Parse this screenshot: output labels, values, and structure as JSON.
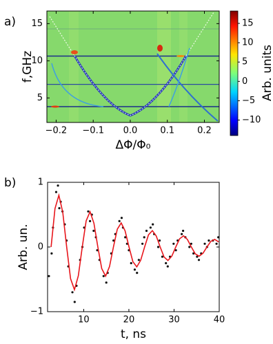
{
  "chart_data": [
    {
      "type": "heatmap",
      "panel_label": "a)",
      "xlabel": "ΔΦ/Φ₀",
      "ylabel": "f,GHz",
      "colorbar_label": "Arb. units",
      "xlim": [
        -0.225,
        0.24
      ],
      "ylim": [
        1.7,
        16.7
      ],
      "xticks": [
        {
          "value": -0.2,
          "label": "−0.2"
        },
        {
          "value": -0.1,
          "label": "−0.1"
        },
        {
          "value": 0,
          "label": "0.0"
        },
        0.1,
        0.2
      ],
      "yticks": [
        5,
        10,
        15
      ],
      "clim": [
        -14,
        18.2
      ],
      "cticks": [
        {
          "value": -10,
          "label": "−10"
        },
        {
          "value": -5,
          "label": "−5"
        },
        0,
        5,
        10,
        15
      ]
    },
    {
      "type": "scatter",
      "panel_label": "b)",
      "xlabel": "t, ns",
      "ylabel": "Arb. un.",
      "xlim": [
        2,
        40
      ],
      "ylim": [
        -1,
        1
      ],
      "xticks": [
        10,
        20,
        30,
        40
      ],
      "yticks": [
        {
          "value": -1,
          "label": "−1"
        },
        0,
        1
      ],
      "series": [
        {
          "type": "scatter",
          "color": "#111111",
          "x": [
            2.3,
            3.2,
            3.9,
            4.3,
            4.9,
            5.8,
            6.6,
            7.5,
            8.4,
            9.2,
            10.1,
            11.0,
            11.8,
            12.7,
            13.5,
            14.4,
            15.3,
            16.1,
            17.0,
            17.9,
            18.7,
            19.6,
            20.5,
            21.3,
            22.2,
            23.0,
            23.9,
            24.8,
            25.6,
            26.5,
            27.4,
            28.2,
            29.1,
            29.9,
            30.8,
            31.7,
            32.5,
            33.4,
            34.3,
            35.1,
            36.0,
            36.8,
            37.7,
            38.6,
            39.4,
            4.6,
            8.0,
            11.4,
            15.0,
            18.4,
            21.8,
            25.3,
            28.6,
            32.0,
            35.5,
            2.9,
            6.2,
            9.7,
            13.0,
            16.6,
            20.0,
            26.8,
            30.4,
            33.8,
            37.3,
            39.8,
            5.3,
            12.2,
            19.2,
            23.4
          ],
          "values": [
            -0.45,
            0.3,
            0.85,
            0.95,
            0.7,
            0.35,
            -0.3,
            -0.7,
            -0.6,
            -0.2,
            0.3,
            0.55,
            0.5,
            0.15,
            -0.2,
            -0.45,
            -0.4,
            -0.1,
            0.2,
            0.4,
            0.3,
            0.05,
            -0.25,
            -0.35,
            -0.2,
            0.05,
            0.25,
            0.3,
            0.2,
            0.0,
            -0.15,
            -0.25,
            -0.15,
            0.05,
            0.1,
            0.2,
            0.15,
            0.0,
            -0.1,
            -0.15,
            -0.1,
            0.05,
            0.1,
            0.1,
            0.05,
            0.6,
            -0.85,
            0.4,
            -0.55,
            0.45,
            -0.4,
            0.35,
            -0.3,
            0.25,
            -0.2,
            -0.1,
            0.1,
            0.0,
            -0.05,
            0.1,
            -0.05,
            0.1,
            -0.05,
            0.05,
            0.0,
            0.15,
            0.55,
            0.25,
            0.15,
            0.15
          ]
        },
        {
          "type": "line",
          "color": "#e8151b",
          "x": [
            2.78,
            3.64,
            4.5,
            5.36,
            6.23,
            7.09,
            7.95,
            8.81,
            9.68,
            10.54,
            11.4,
            12.26,
            13.13,
            13.99,
            14.85,
            15.71,
            16.58,
            17.44,
            18.3,
            19.16,
            20.03,
            20.89,
            21.75,
            22.61,
            23.48,
            24.34,
            25.2,
            26.06,
            26.93,
            27.79,
            28.65,
            29.51,
            30.38,
            31.24,
            32.1,
            32.96,
            33.83,
            34.69,
            35.55,
            36.41,
            37.28,
            38.14,
            39.0,
            39.86
          ],
          "values": [
            0,
            0.593,
            0.8,
            0.539,
            0,
            -0.49,
            -0.66,
            -0.445,
            0,
            0.404,
            0.545,
            0.368,
            0,
            -0.334,
            -0.45,
            -0.303,
            0,
            0.276,
            0.372,
            0.25,
            0,
            -0.228,
            -0.307,
            -0.206,
            0,
            0.188,
            0.253,
            0.17,
            0,
            -0.155,
            -0.209,
            -0.141,
            0,
            0.128,
            0.173,
            0.116,
            0,
            -0.105,
            -0.142,
            -0.096,
            0,
            0.087,
            0.118,
            0.079
          ]
        }
      ]
    }
  ]
}
